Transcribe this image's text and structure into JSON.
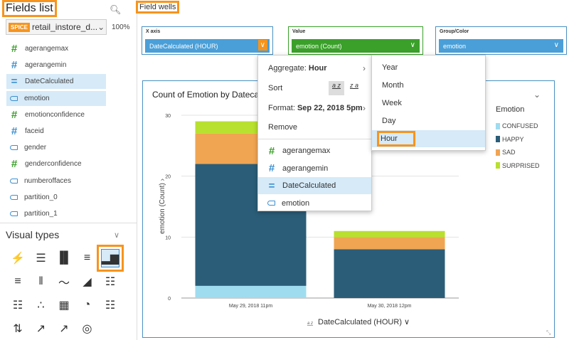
{
  "fields_panel": {
    "title": "Fields list",
    "dataset": "retail_instore_d...",
    "spice_badge": "SPICE",
    "percent": "100%",
    "fields": [
      {
        "name": "agerangemax",
        "type": "measure"
      },
      {
        "name": "agerangemin",
        "type": "measure-blue"
      },
      {
        "name": "DateCalculated",
        "type": "date",
        "selected": true
      },
      {
        "name": "emotion",
        "type": "dimension",
        "selected": true
      },
      {
        "name": "emotionconfidence",
        "type": "measure"
      },
      {
        "name": "faceid",
        "type": "measure-blue"
      },
      {
        "name": "gender",
        "type": "dimension"
      },
      {
        "name": "genderconfidence",
        "type": "measure"
      },
      {
        "name": "numberoffaces",
        "type": "dimension"
      },
      {
        "name": "partition_0",
        "type": "dimension"
      },
      {
        "name": "partition_1",
        "type": "dimension"
      }
    ]
  },
  "visual_types": {
    "title": "Visual types",
    "icons": [
      "kpi",
      "horizontal-bar",
      "vertical-bar",
      "horizontal-stacked-bar",
      "vertical-stacked-bar",
      "horizontal-100-bar",
      "vertical-100-bar",
      "line",
      "area",
      "pivot-table",
      "heat-map",
      "scatter",
      "tree-map",
      "pie",
      "table",
      "waterfall",
      "combo-bar",
      "combo-stacked",
      "globe"
    ],
    "selected": "vertical-stacked-bar"
  },
  "field_wells": {
    "title": "Field wells",
    "wells": [
      {
        "label": "X axis",
        "value": "DateCalculated (HOUR)",
        "color": "#4a9fd8"
      },
      {
        "label": "Value",
        "value": "emotion (Count)",
        "color": "#3aa02a"
      },
      {
        "label": "Group/Color",
        "value": "emotion",
        "color": "#4a9fd8"
      }
    ]
  },
  "menu": {
    "aggregate_label": "Aggregate:",
    "aggregate_value": "Hour",
    "sort_label": "Sort",
    "sort_az": "a z",
    "sort_za": "z a",
    "format_label": "Format:",
    "format_value": "Sep 22, 2018 5pm",
    "remove": "Remove",
    "fields": [
      "agerangemax",
      "agerangemin",
      "DateCalculated",
      "emotion"
    ],
    "submenu": [
      "Year",
      "Month",
      "Week",
      "Day",
      "Hour"
    ],
    "submenu_selected": "Hour"
  },
  "chart_data": {
    "type": "bar",
    "stacked": true,
    "title": "Count of Emotion by Dateca",
    "xlabel": "DateCalculated (HOUR)",
    "ylabel": "emotion (Count)",
    "xlabel_sort": "a z",
    "categories": [
      "May 29, 2018 11pm",
      "May 30, 2018 12pm"
    ],
    "ylim": [
      0,
      30
    ],
    "yticks": [
      0,
      10,
      20,
      30
    ],
    "legend_title": "Emotion",
    "series": [
      {
        "name": "CONFUSED",
        "color": "#9fdcf0",
        "values": [
          2,
          0
        ]
      },
      {
        "name": "HAPPY",
        "color": "#2b5d78",
        "values": [
          20,
          8
        ]
      },
      {
        "name": "SAD",
        "color": "#f0a552",
        "values": [
          5,
          2
        ]
      },
      {
        "name": "SURPRISED",
        "color": "#b8e02e",
        "values": [
          2,
          1
        ]
      }
    ]
  }
}
